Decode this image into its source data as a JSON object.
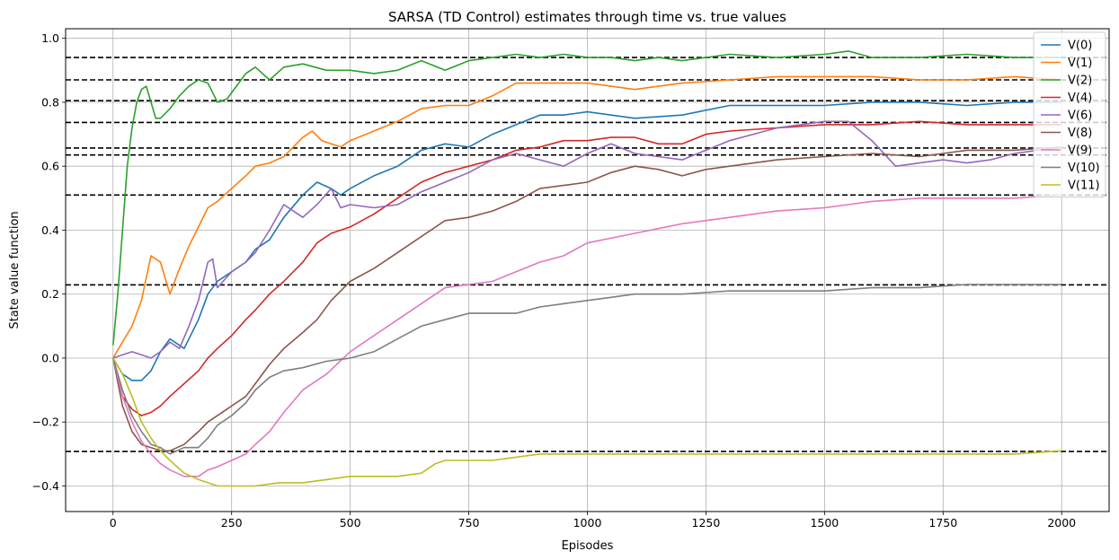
{
  "chart_data": {
    "type": "line",
    "title": "SARSA (TD Control) estimates through time vs. true values",
    "xlabel": "Episodes",
    "ylabel": "State value function",
    "xlim": [
      -100,
      2100
    ],
    "ylim": [
      -0.48,
      1.03
    ],
    "xticks": [
      0,
      250,
      500,
      750,
      1000,
      1250,
      1500,
      1750,
      2000
    ],
    "xtick_labels": [
      "0",
      "250",
      "500",
      "750",
      "1000",
      "1250",
      "1500",
      "1750",
      "2000"
    ],
    "yticks": [
      -0.4,
      -0.2,
      0.0,
      0.2,
      0.4,
      0.6,
      0.8,
      1.0
    ],
    "ytick_labels": [
      "−0.4",
      "−0.2",
      "0.0",
      "0.2",
      "0.4",
      "0.6",
      "0.8",
      "1.0"
    ],
    "grid": true,
    "legend_position": "top-right",
    "true_values": [
      0.94,
      0.87,
      0.805,
      0.737,
      0.657,
      0.635,
      0.51,
      0.229,
      -0.292
    ],
    "series": [
      {
        "name": "V(0)",
        "color": "#1f77b4",
        "x": [
          0,
          20,
          40,
          60,
          80,
          100,
          120,
          150,
          180,
          200,
          220,
          250,
          280,
          300,
          330,
          360,
          400,
          430,
          460,
          480,
          500,
          550,
          600,
          650,
          700,
          750,
          800,
          850,
          900,
          950,
          1000,
          1100,
          1200,
          1300,
          1400,
          1500,
          1600,
          1700,
          1800,
          1900,
          2000
        ],
        "y": [
          0.0,
          -0.05,
          -0.07,
          -0.07,
          -0.04,
          0.02,
          0.06,
          0.03,
          0.12,
          0.2,
          0.24,
          0.27,
          0.3,
          0.34,
          0.37,
          0.44,
          0.51,
          0.55,
          0.53,
          0.51,
          0.53,
          0.57,
          0.6,
          0.65,
          0.67,
          0.66,
          0.7,
          0.73,
          0.76,
          0.76,
          0.77,
          0.75,
          0.76,
          0.79,
          0.79,
          0.79,
          0.8,
          0.8,
          0.79,
          0.8,
          0.8
        ]
      },
      {
        "name": "V(1)",
        "color": "#ff7f0e",
        "x": [
          0,
          20,
          40,
          60,
          80,
          100,
          120,
          140,
          160,
          180,
          200,
          220,
          250,
          280,
          300,
          330,
          360,
          400,
          420,
          440,
          460,
          480,
          500,
          550,
          600,
          650,
          700,
          750,
          800,
          850,
          900,
          950,
          1000,
          1050,
          1100,
          1150,
          1200,
          1300,
          1400,
          1500,
          1600,
          1700,
          1800,
          1900,
          2000
        ],
        "y": [
          0.0,
          0.05,
          0.1,
          0.18,
          0.32,
          0.3,
          0.2,
          0.28,
          0.35,
          0.41,
          0.47,
          0.49,
          0.53,
          0.57,
          0.6,
          0.61,
          0.63,
          0.69,
          0.71,
          0.68,
          0.67,
          0.66,
          0.68,
          0.71,
          0.74,
          0.78,
          0.79,
          0.79,
          0.82,
          0.86,
          0.86,
          0.86,
          0.86,
          0.85,
          0.84,
          0.85,
          0.86,
          0.87,
          0.88,
          0.88,
          0.88,
          0.87,
          0.87,
          0.88,
          0.87
        ]
      },
      {
        "name": "V(2)",
        "color": "#2ca02c",
        "x": [
          0,
          10,
          20,
          30,
          40,
          50,
          60,
          70,
          80,
          90,
          100,
          120,
          140,
          160,
          180,
          200,
          220,
          240,
          260,
          280,
          300,
          330,
          360,
          400,
          450,
          500,
          550,
          600,
          650,
          700,
          750,
          800,
          850,
          900,
          950,
          1000,
          1050,
          1100,
          1150,
          1200,
          1300,
          1400,
          1500,
          1550,
          1600,
          1700,
          1800,
          1900,
          2000
        ],
        "y": [
          0.04,
          0.2,
          0.4,
          0.6,
          0.72,
          0.8,
          0.84,
          0.85,
          0.8,
          0.75,
          0.75,
          0.78,
          0.82,
          0.85,
          0.87,
          0.86,
          0.8,
          0.81,
          0.85,
          0.89,
          0.91,
          0.87,
          0.91,
          0.92,
          0.9,
          0.9,
          0.89,
          0.9,
          0.93,
          0.9,
          0.93,
          0.94,
          0.95,
          0.94,
          0.95,
          0.94,
          0.94,
          0.93,
          0.94,
          0.93,
          0.95,
          0.94,
          0.95,
          0.96,
          0.94,
          0.94,
          0.95,
          0.94,
          0.94
        ]
      },
      {
        "name": "V(4)",
        "color": "#d62728",
        "x": [
          0,
          20,
          40,
          60,
          80,
          100,
          120,
          150,
          180,
          200,
          220,
          250,
          280,
          300,
          330,
          360,
          400,
          430,
          460,
          500,
          550,
          600,
          650,
          700,
          750,
          800,
          850,
          900,
          950,
          1000,
          1050,
          1100,
          1150,
          1200,
          1250,
          1300,
          1400,
          1500,
          1600,
          1700,
          1800,
          1900,
          2000
        ],
        "y": [
          0.0,
          -0.12,
          -0.16,
          -0.18,
          -0.17,
          -0.15,
          -0.12,
          -0.08,
          -0.04,
          0.0,
          0.03,
          0.07,
          0.12,
          0.15,
          0.2,
          0.24,
          0.3,
          0.36,
          0.39,
          0.41,
          0.45,
          0.5,
          0.55,
          0.58,
          0.6,
          0.62,
          0.65,
          0.66,
          0.68,
          0.68,
          0.69,
          0.69,
          0.67,
          0.67,
          0.7,
          0.71,
          0.72,
          0.73,
          0.73,
          0.74,
          0.73,
          0.73,
          0.73
        ]
      },
      {
        "name": "V(6)",
        "color": "#9467bd",
        "x": [
          0,
          20,
          40,
          60,
          80,
          100,
          120,
          140,
          160,
          180,
          200,
          210,
          220,
          250,
          280,
          300,
          330,
          360,
          380,
          400,
          430,
          460,
          480,
          500,
          550,
          600,
          650,
          700,
          750,
          800,
          850,
          900,
          950,
          1000,
          1050,
          1100,
          1150,
          1200,
          1250,
          1300,
          1350,
          1400,
          1450,
          1500,
          1550,
          1600,
          1650,
          1700,
          1750,
          1800,
          1850,
          1900,
          2000
        ],
        "y": [
          0.0,
          0.01,
          0.02,
          0.01,
          0.0,
          0.02,
          0.05,
          0.03,
          0.1,
          0.18,
          0.3,
          0.31,
          0.22,
          0.27,
          0.3,
          0.33,
          0.4,
          0.48,
          0.46,
          0.44,
          0.48,
          0.53,
          0.47,
          0.48,
          0.47,
          0.48,
          0.52,
          0.55,
          0.58,
          0.62,
          0.64,
          0.62,
          0.6,
          0.64,
          0.67,
          0.64,
          0.63,
          0.62,
          0.65,
          0.68,
          0.7,
          0.72,
          0.73,
          0.74,
          0.74,
          0.68,
          0.6,
          0.61,
          0.62,
          0.61,
          0.62,
          0.64,
          0.66
        ]
      },
      {
        "name": "V(8)",
        "color": "#8c564b",
        "x": [
          0,
          20,
          40,
          60,
          80,
          100,
          120,
          150,
          180,
          200,
          220,
          250,
          280,
          300,
          330,
          360,
          400,
          430,
          460,
          500,
          550,
          600,
          650,
          700,
          750,
          800,
          850,
          900,
          950,
          1000,
          1050,
          1100,
          1150,
          1200,
          1250,
          1300,
          1400,
          1500,
          1600,
          1700,
          1750,
          1800,
          1900,
          2000
        ],
        "y": [
          0.0,
          -0.15,
          -0.23,
          -0.27,
          -0.28,
          -0.29,
          -0.29,
          -0.27,
          -0.23,
          -0.2,
          -0.18,
          -0.15,
          -0.12,
          -0.08,
          -0.02,
          0.03,
          0.08,
          0.12,
          0.18,
          0.24,
          0.28,
          0.33,
          0.38,
          0.43,
          0.44,
          0.46,
          0.49,
          0.53,
          0.54,
          0.55,
          0.58,
          0.6,
          0.59,
          0.57,
          0.59,
          0.6,
          0.62,
          0.63,
          0.64,
          0.63,
          0.64,
          0.65,
          0.65,
          0.66
        ]
      },
      {
        "name": "V(9)",
        "color": "#e377c2",
        "x": [
          0,
          20,
          40,
          60,
          80,
          100,
          120,
          150,
          180,
          200,
          220,
          250,
          280,
          300,
          330,
          360,
          400,
          450,
          500,
          550,
          600,
          650,
          700,
          750,
          800,
          850,
          900,
          950,
          1000,
          1100,
          1200,
          1300,
          1400,
          1500,
          1600,
          1700,
          1800,
          1900,
          2000
        ],
        "y": [
          0.0,
          -0.12,
          -0.2,
          -0.26,
          -0.3,
          -0.33,
          -0.35,
          -0.37,
          -0.37,
          -0.35,
          -0.34,
          -0.32,
          -0.3,
          -0.27,
          -0.23,
          -0.17,
          -0.1,
          -0.05,
          0.02,
          0.07,
          0.12,
          0.17,
          0.22,
          0.23,
          0.24,
          0.27,
          0.3,
          0.32,
          0.36,
          0.39,
          0.42,
          0.44,
          0.46,
          0.47,
          0.49,
          0.5,
          0.5,
          0.5,
          0.51
        ]
      },
      {
        "name": "V(10)",
        "color": "#7f7f7f",
        "x": [
          0,
          20,
          40,
          60,
          80,
          100,
          120,
          150,
          180,
          200,
          220,
          250,
          280,
          300,
          330,
          360,
          400,
          450,
          500,
          550,
          600,
          650,
          700,
          750,
          800,
          850,
          900,
          950,
          1000,
          1050,
          1100,
          1150,
          1200,
          1300,
          1400,
          1500,
          1600,
          1700,
          1800,
          1900,
          2000
        ],
        "y": [
          0.0,
          -0.1,
          -0.18,
          -0.23,
          -0.27,
          -0.28,
          -0.3,
          -0.28,
          -0.28,
          -0.25,
          -0.21,
          -0.18,
          -0.14,
          -0.1,
          -0.06,
          -0.04,
          -0.03,
          -0.01,
          0.0,
          0.02,
          0.06,
          0.1,
          0.12,
          0.14,
          0.14,
          0.14,
          0.16,
          0.17,
          0.18,
          0.19,
          0.2,
          0.2,
          0.2,
          0.21,
          0.21,
          0.21,
          0.22,
          0.22,
          0.23,
          0.23,
          0.23
        ]
      },
      {
        "name": "V(11)",
        "color": "#bcbd22",
        "x": [
          0,
          20,
          40,
          60,
          80,
          100,
          120,
          150,
          180,
          200,
          220,
          240,
          260,
          300,
          350,
          400,
          450,
          500,
          550,
          600,
          650,
          680,
          700,
          750,
          800,
          850,
          900,
          950,
          1000,
          1100,
          1200,
          1300,
          1400,
          1500,
          1600,
          1700,
          1800,
          1900,
          2000
        ],
        "y": [
          0.0,
          -0.05,
          -0.12,
          -0.2,
          -0.25,
          -0.29,
          -0.32,
          -0.36,
          -0.38,
          -0.39,
          -0.4,
          -0.4,
          -0.4,
          -0.4,
          -0.39,
          -0.39,
          -0.38,
          -0.37,
          -0.37,
          -0.37,
          -0.36,
          -0.33,
          -0.32,
          -0.32,
          -0.32,
          -0.31,
          -0.3,
          -0.3,
          -0.3,
          -0.3,
          -0.3,
          -0.3,
          -0.3,
          -0.3,
          -0.3,
          -0.3,
          -0.3,
          -0.3,
          -0.29
        ]
      }
    ]
  }
}
